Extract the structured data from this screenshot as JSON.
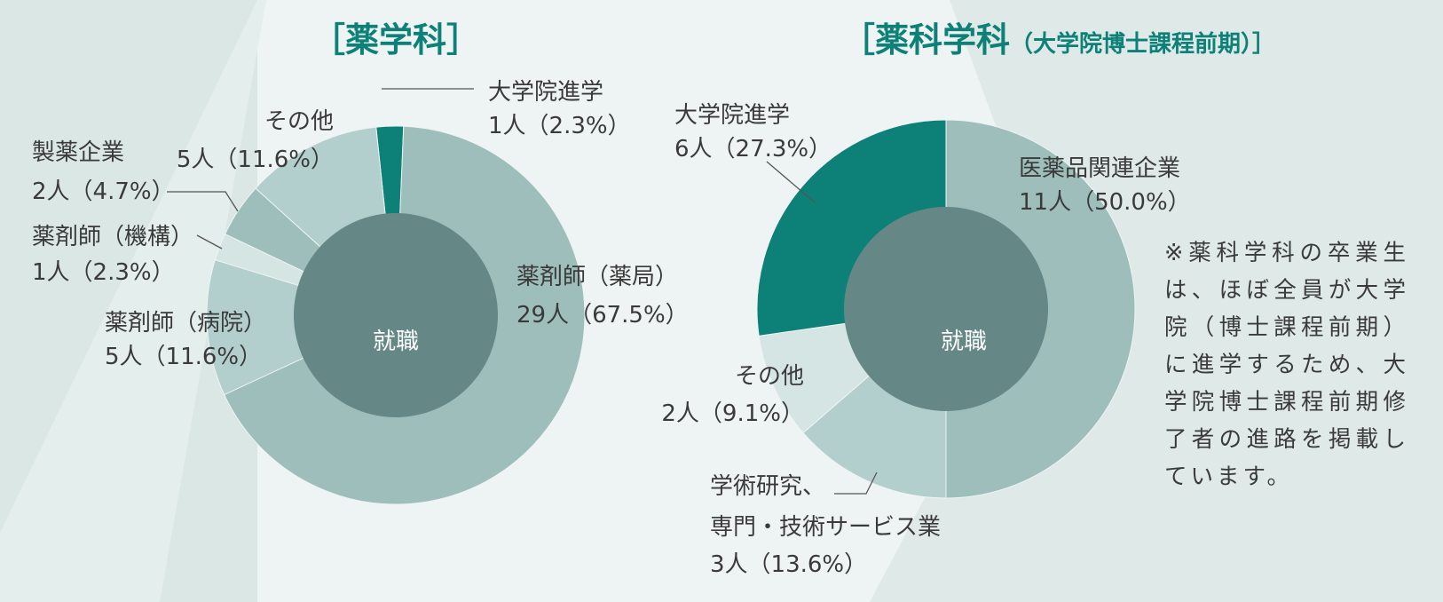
{
  "colors": {
    "background": "#eef4f3",
    "band": "#dbe7e5",
    "accent": "#0d8177",
    "slice_main": "#9ebebc",
    "slice_mid": "#b3cfcd",
    "slice_light": "#d4e5e3",
    "center": "#658886"
  },
  "note": "※薬科学科の卒業生は、ほぼ全員が大学院（博士課程前期）に進学するため、大学院博士課程前期修了者の進路を掲載しています。",
  "chart_data": [
    {
      "type": "pie",
      "title": "［薬学科］",
      "subtitle": "",
      "center_label": "就職",
      "unit": "人",
      "slices": [
        {
          "name": "大学院進学",
          "value": 1,
          "percent": 2.3,
          "label_count": "1人（2.3%）",
          "color": "#0d8177"
        },
        {
          "name": "薬剤師（薬局）",
          "value": 29,
          "percent": 67.5,
          "label_count": "29人（67.5%）",
          "color": "#9ebebc"
        },
        {
          "name": "薬剤師（病院）",
          "value": 5,
          "percent": 11.6,
          "label_count": "5人（11.6%）",
          "color": "#b3cfcd"
        },
        {
          "name": "薬剤師（機構）",
          "value": 1,
          "percent": 2.3,
          "label_count": "1人（2.3%）",
          "color": "#d4e5e3"
        },
        {
          "name": "製薬企業",
          "value": 2,
          "percent": 4.7,
          "label_count": "2人（4.7%）",
          "color": "#9ebebc"
        },
        {
          "name": "その他",
          "value": 5,
          "percent": 11.6,
          "label_count": "5人（11.6%）",
          "color": "#b3cfcd"
        }
      ]
    },
    {
      "type": "pie",
      "title": "［薬科学科",
      "subtitle": "（大学院博士課程前期）］",
      "center_label": "就職",
      "unit": "人",
      "slices": [
        {
          "name": "医薬品関連企業",
          "value": 11,
          "percent": 50.0,
          "label_count": "11人（50.0%）",
          "color": "#9ebebc"
        },
        {
          "name": "学術研究、専門・技術サービス業",
          "value": 3,
          "percent": 13.6,
          "label_count": "3人（13.6%）",
          "color": "#b3cfcd"
        },
        {
          "name": "その他",
          "value": 2,
          "percent": 9.1,
          "label_count": "2人（9.1%）",
          "color": "#d4e5e3"
        },
        {
          "name": "大学院進学",
          "value": 6,
          "percent": 27.3,
          "label_count": "6人（27.3%）",
          "color": "#0d8177"
        }
      ]
    }
  ]
}
